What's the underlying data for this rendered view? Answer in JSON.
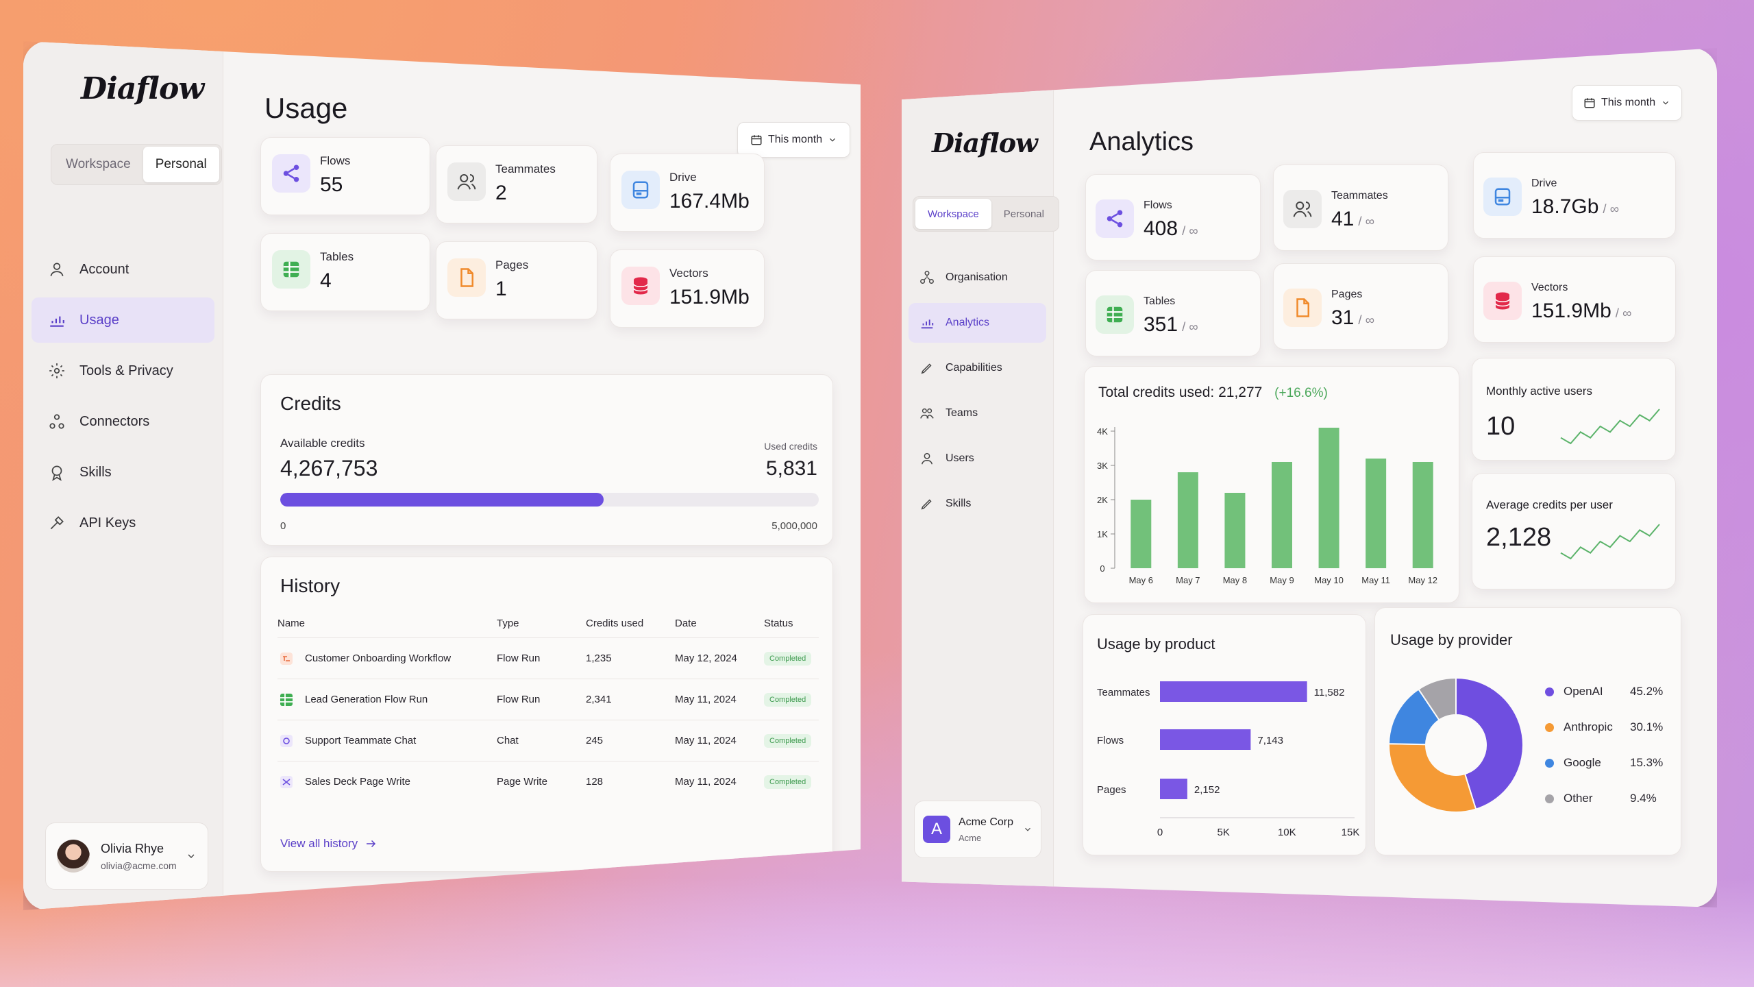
{
  "usage": {
    "logo": "Diaflow",
    "seg": [
      "Workspace",
      "Personal"
    ],
    "seg_active": 1,
    "nav": [
      {
        "label": "Account",
        "icon": "user-icon"
      },
      {
        "label": "Usage",
        "icon": "chart-icon",
        "active": true
      },
      {
        "label": "Tools & Privacy",
        "icon": "gear-icon"
      },
      {
        "label": "Connectors",
        "icon": "connectors-icon"
      },
      {
        "label": "Skills",
        "icon": "badge-icon"
      },
      {
        "label": "API Keys",
        "icon": "key-icon"
      }
    ],
    "user": {
      "name": "Olivia Rhye",
      "email": "olivia@acme.com"
    },
    "title": "Usage",
    "range": "This month",
    "stats": [
      {
        "label": "Flows",
        "value": "55",
        "icon": "share-icon",
        "color": "purple"
      },
      {
        "label": "Teammates",
        "value": "2",
        "icon": "users-icon",
        "color": "gray"
      },
      {
        "label": "Drive",
        "value": "167.4Mb",
        "icon": "drive-icon",
        "color": "blue"
      },
      {
        "label": "Tables",
        "value": "4",
        "icon": "table-icon",
        "color": "green"
      },
      {
        "label": "Pages",
        "value": "1",
        "icon": "page-icon",
        "color": "orange"
      },
      {
        "label": "Vectors",
        "value": "151.9Mb",
        "icon": "database-icon",
        "color": "red"
      }
    ],
    "credits": {
      "title": "Credits",
      "available_label": "Available credits",
      "available": "4,267,753",
      "used_label": "Used credits",
      "used": "5,831",
      "progress": 0.6,
      "min": "0",
      "max": "5,000,000"
    },
    "history": {
      "title": "History",
      "columns": [
        "Name",
        "Type",
        "Credits used",
        "Date",
        "Status"
      ],
      "rows": [
        {
          "name": "Customer Onboarding Workflow",
          "type": "Flow Run",
          "credits": "1,235",
          "date": "May 12, 2024",
          "status": "Completed",
          "icon": "flow-icon"
        },
        {
          "name": "Lead Generation Flow Run",
          "type": "Flow Run",
          "credits": "2,341",
          "date": "May 11, 2024",
          "status": "Completed",
          "icon": "table-icon"
        },
        {
          "name": "Support Teammate Chat",
          "type": "Chat",
          "credits": "245",
          "date": "May 11, 2024",
          "status": "Completed",
          "icon": "chat-icon"
        },
        {
          "name": "Sales Deck Page Write",
          "type": "Page Write",
          "credits": "128",
          "date": "May 11, 2024",
          "status": "Completed",
          "icon": "shuffle-icon"
        }
      ],
      "view_all": "View all history"
    }
  },
  "analytics": {
    "logo": "Diaflow",
    "seg": [
      "Workspace",
      "Personal"
    ],
    "seg_active": 0,
    "nav": [
      {
        "label": "Organisation",
        "icon": "org-icon"
      },
      {
        "label": "Analytics",
        "icon": "chart-icon",
        "active": true
      },
      {
        "label": "Capabilities",
        "icon": "pen-icon"
      },
      {
        "label": "Teams",
        "icon": "teams-icon"
      },
      {
        "label": "Users",
        "icon": "user-icon"
      },
      {
        "label": "Skills",
        "icon": "pen-icon"
      }
    ],
    "org": {
      "initial": "A",
      "name": "Acme Corp",
      "sub": "Acme"
    },
    "title": "Analytics",
    "range": "This month",
    "stats": [
      {
        "label": "Flows",
        "value": "408",
        "limit": "/ ∞",
        "icon": "share-icon",
        "color": "purple"
      },
      {
        "label": "Teammates",
        "value": "41",
        "limit": "/ ∞",
        "icon": "users-icon",
        "color": "gray"
      },
      {
        "label": "Drive",
        "value": "18.7Gb",
        "limit": "/ ∞",
        "icon": "drive-icon",
        "color": "blue"
      },
      {
        "label": "Tables",
        "value": "351",
        "limit": "/ ∞",
        "icon": "table-icon",
        "color": "green"
      },
      {
        "label": "Pages",
        "value": "31",
        "limit": "/ ∞",
        "icon": "page-icon",
        "color": "orange"
      },
      {
        "label": "Vectors",
        "value": "151.9Mb",
        "limit": "/ ∞",
        "icon": "database-icon",
        "color": "red"
      }
    ],
    "mau": {
      "label": "Monthly active users",
      "value": "10",
      "spark": [
        3,
        2,
        4,
        3,
        5,
        4,
        6,
        5,
        7,
        6,
        8
      ]
    },
    "avg": {
      "label": "Average credits per user",
      "value": "2,128",
      "spark": [
        3,
        2,
        4,
        3,
        5,
        4,
        6,
        5,
        7,
        6,
        8
      ]
    }
  },
  "chart_data": [
    {
      "type": "bar",
      "title": "Total credits used: 21,277",
      "subtitle": "(+16.6%)",
      "categories": [
        "May 6",
        "May 7",
        "May 8",
        "May 9",
        "May 10",
        "May 11",
        "May 12"
      ],
      "values": [
        2000,
        2800,
        2200,
        3100,
        4100,
        3200,
        3100
      ],
      "ylim": [
        0,
        4000
      ],
      "yticks": [
        "0",
        "1K",
        "2K",
        "3K",
        "4K"
      ],
      "color": "#72c17a"
    },
    {
      "type": "bar",
      "orientation": "horizontal",
      "title": "Usage by product",
      "categories": [
        "Teammates",
        "Flows",
        "Pages"
      ],
      "values": [
        11582,
        7143,
        2152
      ],
      "value_labels": [
        "11,582",
        "7,143",
        "2,152"
      ],
      "xlim": [
        0,
        15000
      ],
      "xticks": [
        "0",
        "5K",
        "10K",
        "15K"
      ],
      "color": "#7a57e4"
    },
    {
      "type": "pie",
      "title": "Usage by provider",
      "labels": [
        "OpenAI",
        "Anthropic",
        "Google",
        "Other"
      ],
      "values": [
        45.2,
        30.1,
        15.3,
        9.4
      ],
      "display": [
        "45.2%",
        "30.1%",
        "15.3%",
        "9.4%"
      ],
      "colors": [
        "#6f4ee0",
        "#f59a35",
        "#3f86e0",
        "#a5a3a8"
      ]
    }
  ]
}
